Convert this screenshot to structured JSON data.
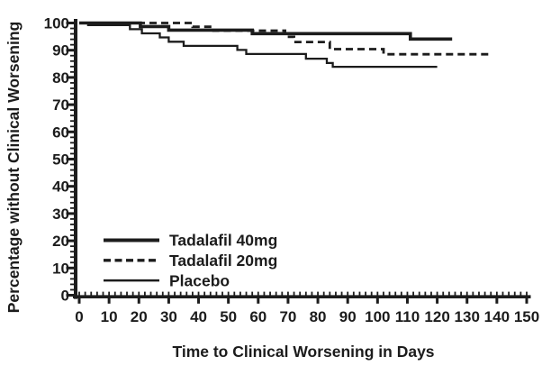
{
  "figure": {
    "background_color": "#ffffff",
    "ink_color": "#1c1c1c"
  },
  "chart_data": {
    "type": "line",
    "subtype": "kaplan-meier-step-curves",
    "title": "",
    "xlabel": "Time to Clinical Worsening in Days",
    "ylabel": "Percentage without Clinical Worsening",
    "xlim": [
      0,
      150
    ],
    "ylim": [
      0,
      100
    ],
    "x_ticks": [
      0,
      10,
      20,
      30,
      40,
      50,
      60,
      70,
      80,
      90,
      100,
      110,
      120,
      130,
      140,
      150
    ],
    "y_ticks": [
      0,
      10,
      20,
      30,
      40,
      50,
      60,
      70,
      80,
      90,
      100
    ],
    "x_minor_tick_interval": 2,
    "y_minor_tick_interval": 2,
    "grid": false,
    "legend_position": "inside-bottom-left",
    "series": [
      {
        "name": "Tadalafil 40mg",
        "line_style": "solid",
        "weight": "thick",
        "color": "#1c1c1c",
        "steps": [
          [
            0,
            100
          ],
          [
            20.5,
            98.7
          ],
          [
            30,
            97.4
          ],
          [
            58,
            96.1
          ],
          [
            111,
            94.1
          ]
        ],
        "end_day": 125,
        "end_value": 94.1
      },
      {
        "name": "Tadalafil 20mg",
        "line_style": "dashed",
        "weight": "medium",
        "color": "#1c1c1c",
        "steps": [
          [
            0,
            100
          ],
          [
            38,
            98.6
          ],
          [
            45,
            97.2
          ],
          [
            69,
            94.9
          ],
          [
            72,
            93.0
          ],
          [
            84,
            90.4
          ],
          [
            102,
            88.5
          ]
        ],
        "end_day": 138,
        "end_value": 88.5
      },
      {
        "name": "Placebo",
        "line_style": "solid",
        "weight": "thin",
        "color": "#1c1c1c",
        "steps": [
          [
            0,
            100
          ],
          [
            3,
            99.2
          ],
          [
            17,
            97.7
          ],
          [
            21,
            96.2
          ],
          [
            27,
            94.7
          ],
          [
            30,
            93.1
          ],
          [
            35,
            91.6
          ],
          [
            53,
            90.1
          ],
          [
            56,
            88.6
          ],
          [
            76,
            86.9
          ],
          [
            83,
            85.3
          ],
          [
            85,
            83.9
          ]
        ],
        "end_day": 120,
        "end_value": 83.9
      }
    ]
  }
}
